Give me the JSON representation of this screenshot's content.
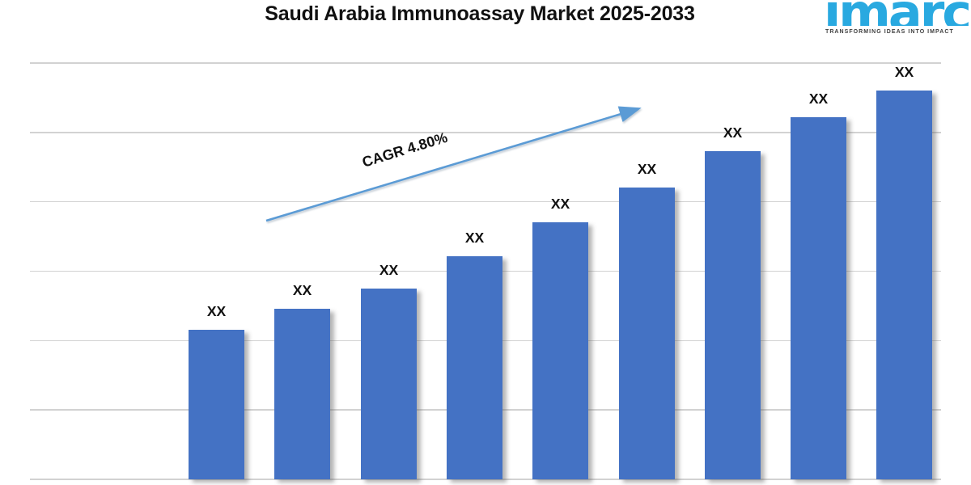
{
  "logo": {
    "brand": "imarc",
    "tagline": "TRANSFORMING IDEAS INTO IMPACT",
    "brand_color": "#29A9E0",
    "tagline_color": "#3D3D3D"
  },
  "chart_data": {
    "type": "bar",
    "title": "Saudi Arabia Immunoassay Market 2025-2033",
    "xlabel": "",
    "ylabel": "",
    "bar_count": 9,
    "value_labels": [
      "XX",
      "XX",
      "XX",
      "XX",
      "XX",
      "XX",
      "XX",
      "XX",
      "XX"
    ],
    "values_normalized": [
      0.359,
      0.41,
      0.458,
      0.536,
      0.617,
      0.701,
      0.788,
      0.87,
      0.934
    ],
    "annotation": "CAGR 4.80%",
    "gridlines": true,
    "gridline_count": 7,
    "legend": false,
    "bar_color": "#4472C4",
    "arrow_color": "#5B9BD5",
    "gridline_color": "#D2D2D2",
    "label_color": "#111111"
  }
}
